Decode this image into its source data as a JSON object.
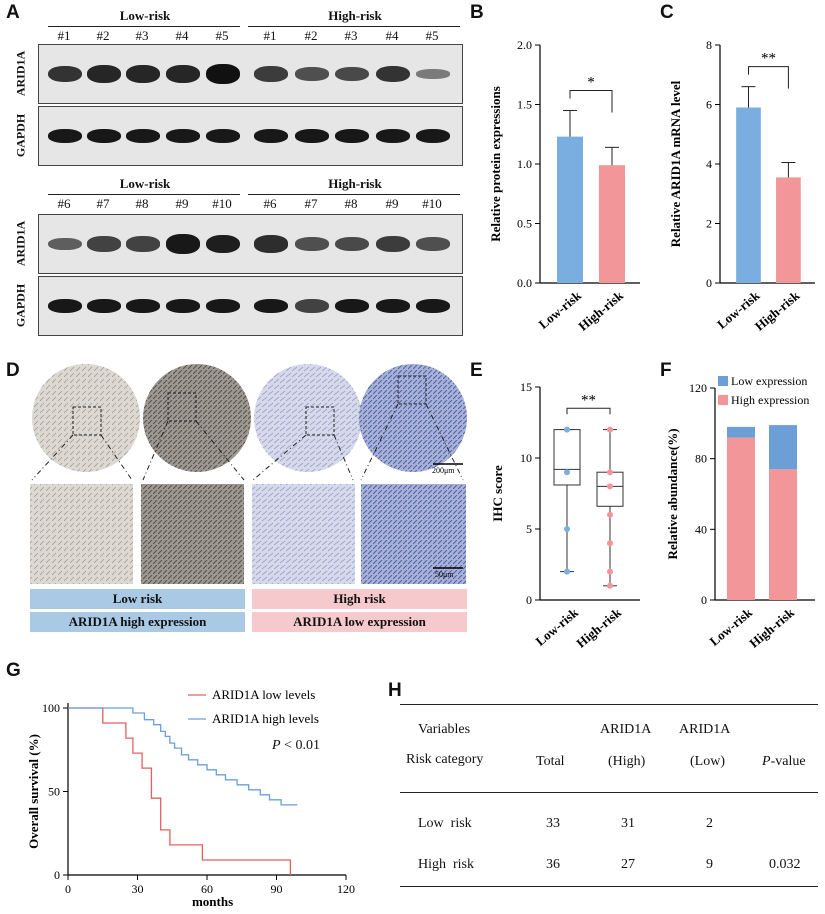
{
  "panels": {
    "A": "A",
    "B": "B",
    "C": "C",
    "D": "D",
    "E": "E",
    "F": "F",
    "G": "G",
    "H": "H"
  },
  "panelA": {
    "top": {
      "low_group": "Low-risk",
      "high_group": "High-risk",
      "low_lanes": [
        "#1",
        "#2",
        "#3",
        "#4",
        "#5"
      ],
      "high_lanes": [
        "#1",
        "#2",
        "#3",
        "#4",
        "#5"
      ],
      "arid1a_intensity": [
        0.75,
        0.85,
        0.85,
        0.85,
        1.0,
        0.7,
        0.55,
        0.6,
        0.75,
        0.25
      ],
      "gapdh_intensity": [
        0.95,
        0.95,
        0.95,
        0.95,
        0.95,
        0.95,
        0.95,
        0.95,
        0.95,
        0.95
      ]
    },
    "bottom": {
      "low_group": "Low-risk",
      "high_group": "High-risk",
      "low_lanes": [
        "#6",
        "#7",
        "#8",
        "#9",
        "#10"
      ],
      "high_lanes": [
        "#6",
        "#7",
        "#8",
        "#9",
        "#10"
      ],
      "arid1a_intensity": [
        0.45,
        0.65,
        0.65,
        0.95,
        0.9,
        0.8,
        0.55,
        0.6,
        0.7,
        0.55
      ],
      "gapdh_intensity": [
        0.95,
        0.95,
        0.95,
        0.95,
        0.95,
        0.95,
        0.65,
        0.95,
        0.95,
        0.95
      ]
    },
    "row_labels": {
      "arid1a": "ARID1A",
      "gapdh": "GAPDH"
    }
  },
  "panelD": {
    "scale_top": "200μm",
    "scale_bottom": "50μm",
    "strip_low_risk": "Low risk",
    "strip_high_risk": "High risk",
    "strip_low_expr": "ARID1A high expression",
    "strip_high_expr": "ARID1A low expression"
  },
  "panelG_text": {
    "p_prefix": "P",
    "p_suffix": " < 0.01"
  },
  "table": {
    "header_variables": "Variables",
    "header_risk": "Risk category",
    "header_total": "Total",
    "header_arid_high_1": "ARID1A",
    "header_arid_high_2": "(High)",
    "header_arid_low_1": "ARID1A",
    "header_arid_low_2": "(Low)",
    "header_p_italic": "P",
    "header_p_rest": "-value",
    "rows": [
      {
        "label": "Low  risk",
        "total": "33",
        "high": "31",
        "low": "2",
        "p": ""
      },
      {
        "label": "High  risk",
        "total": "36",
        "high": "27",
        "low": "9",
        "p": "0.032"
      }
    ]
  },
  "chart_data": [
    {
      "id": "B",
      "type": "bar",
      "categories": [
        "Low-risk",
        "High-risk"
      ],
      "values": [
        1.23,
        0.99
      ],
      "errors": [
        0.22,
        0.15
      ],
      "ylabel": "Relative protein expressions",
      "ylim": [
        0,
        2.0
      ],
      "yticks": [
        0.0,
        0.5,
        1.0,
        1.5,
        2.0
      ],
      "ytick_labels": [
        "0.0",
        "0.5",
        "1.0",
        "1.5",
        "2.0"
      ],
      "colors": [
        "#7aaee0",
        "#f2969a"
      ],
      "significance": "*"
    },
    {
      "id": "C",
      "type": "bar",
      "categories": [
        "Low-risk",
        "High-risk"
      ],
      "values": [
        5.9,
        3.55
      ],
      "errors": [
        0.7,
        0.5
      ],
      "ylabel": "Relative ARID1A mRNA level",
      "ylim": [
        0,
        8
      ],
      "yticks": [
        0,
        2,
        4,
        6,
        8
      ],
      "ytick_labels": [
        "0",
        "2",
        "4",
        "6",
        "8"
      ],
      "colors": [
        "#7aaee0",
        "#f2969a"
      ],
      "significance": "**"
    },
    {
      "id": "E",
      "type": "box",
      "categories": [
        "Low-risk",
        "High-risk"
      ],
      "boxes": [
        {
          "min": 2,
          "q1": 8.1,
          "median": 9.2,
          "q3": 12,
          "max": 12,
          "points": [
            2,
            5,
            9,
            12
          ]
        },
        {
          "min": 1,
          "q1": 6.6,
          "median": 8.0,
          "q3": 9.0,
          "max": 12,
          "points": [
            1,
            2,
            4,
            6,
            8,
            9,
            12
          ]
        }
      ],
      "ylabel": "IHC score",
      "ylim": [
        0,
        15
      ],
      "yticks": [
        0,
        5,
        10,
        15
      ],
      "ytick_labels": [
        "0",
        "5",
        "10",
        "15"
      ],
      "colors": [
        "#7aaee0",
        "#f2969a"
      ],
      "significance": "**"
    },
    {
      "id": "F",
      "type": "bar",
      "stacked": true,
      "categories": [
        "Low-risk",
        "High-risk"
      ],
      "series": [
        {
          "name": "Low expression",
          "values": [
            6,
            25
          ],
          "color": "#6b9fd6"
        },
        {
          "name": "High expression",
          "values": [
            92,
            74
          ],
          "color": "#f2969a"
        }
      ],
      "ylabel": "Relative abundance(%)",
      "ylim": [
        0,
        120
      ],
      "yticks": [
        0,
        40,
        80,
        120
      ],
      "ytick_labels": [
        "0",
        "40",
        "80",
        "120"
      ],
      "legend": "top-right"
    },
    {
      "id": "G",
      "type": "line",
      "xlabel": "months",
      "ylabel": "Overall survival (%)",
      "xlim": [
        0,
        120
      ],
      "ylim": [
        0,
        100
      ],
      "xticks": [
        0,
        30,
        60,
        90,
        120
      ],
      "xtick_labels": [
        "0",
        "30",
        "60",
        "90",
        "120"
      ],
      "yticks": [
        0,
        50,
        100
      ],
      "ytick_labels": [
        "0",
        "50",
        "100"
      ],
      "series": [
        {
          "name": "ARID1A low levels",
          "color": "#e06060",
          "steps": [
            [
              0,
              100
            ],
            [
              15,
              100
            ],
            [
              15,
              91
            ],
            [
              25,
              91
            ],
            [
              25,
              82
            ],
            [
              28,
              82
            ],
            [
              28,
              73
            ],
            [
              32,
              73
            ],
            [
              32,
              64
            ],
            [
              36,
              64
            ],
            [
              36,
              46
            ],
            [
              40,
              46
            ],
            [
              40,
              27
            ],
            [
              44,
              27
            ],
            [
              44,
              18
            ],
            [
              58,
              18
            ],
            [
              58,
              9
            ],
            [
              96,
              9
            ],
            [
              96,
              0
            ]
          ]
        },
        {
          "name": "ARID1A high levels",
          "color": "#6a9fdc",
          "steps": [
            [
              0,
              100
            ],
            [
              28,
              100
            ],
            [
              28,
              97
            ],
            [
              33,
              97
            ],
            [
              33,
              93
            ],
            [
              37,
              93
            ],
            [
              37,
              90
            ],
            [
              40,
              90
            ],
            [
              40,
              86
            ],
            [
              42,
              86
            ],
            [
              42,
              83
            ],
            [
              44,
              83
            ],
            [
              44,
              79
            ],
            [
              46,
              79
            ],
            [
              46,
              76
            ],
            [
              49,
              76
            ],
            [
              49,
              72
            ],
            [
              52,
              72
            ],
            [
              52,
              69
            ],
            [
              56,
              69
            ],
            [
              56,
              66
            ],
            [
              60,
              66
            ],
            [
              60,
              63
            ],
            [
              64,
              63
            ],
            [
              64,
              60
            ],
            [
              68,
              60
            ],
            [
              68,
              57
            ],
            [
              73,
              57
            ],
            [
              73,
              54
            ],
            [
              78,
              54
            ],
            [
              78,
              51
            ],
            [
              83,
              51
            ],
            [
              83,
              48
            ],
            [
              87,
              48
            ],
            [
              87,
              45
            ],
            [
              92,
              45
            ],
            [
              92,
              42
            ],
            [
              99,
              42
            ]
          ]
        }
      ],
      "annotation": "P < 0.01",
      "legend": "top-right"
    }
  ]
}
